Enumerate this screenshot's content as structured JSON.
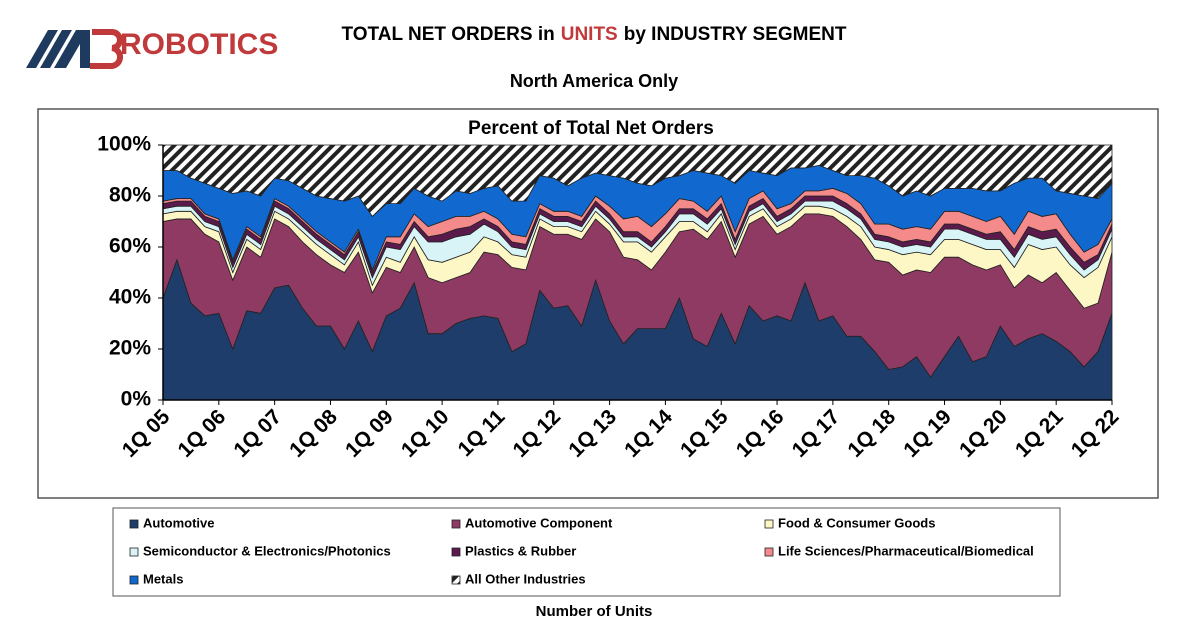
{
  "logo": {
    "text": "ROBOTICS"
  },
  "chart_data": {
    "type": "stacked_area",
    "title": {
      "before": "TOTAL NET ORDERS in",
      "highlight": "UNITS",
      "after": "by INDUSTRY SEGMENT"
    },
    "subtitle": "North America Only",
    "plot_title": "Percent of Total Net Orders",
    "x_label": "Number of Units",
    "categories": [
      "1Q 05",
      null,
      null,
      null,
      "1Q 06",
      null,
      null,
      null,
      "1Q 07",
      null,
      null,
      null,
      "1Q 08",
      null,
      null,
      null,
      "1Q 09",
      null,
      null,
      null,
      "1Q 10",
      null,
      null,
      null,
      "1Q 11",
      null,
      null,
      null,
      "1Q 12",
      null,
      null,
      null,
      "1Q 13",
      null,
      null,
      null,
      "1Q 14",
      null,
      null,
      null,
      "1Q 15",
      null,
      null,
      null,
      "1Q 16",
      null,
      null,
      null,
      "1Q 17",
      null,
      null,
      null,
      "1Q 18",
      null,
      null,
      null,
      "1Q 19",
      null,
      null,
      null,
      "1Q 20",
      null,
      null,
      null,
      "1Q 21",
      null,
      null,
      null,
      "1Q 22"
    ],
    "ylim": [
      0,
      100
    ],
    "yticks": [
      {
        "value": 0,
        "label": "0%"
      },
      {
        "value": 20,
        "label": "20%"
      },
      {
        "value": 40,
        "label": "40%"
      },
      {
        "value": 60,
        "label": "60%"
      },
      {
        "value": 80,
        "label": "80%"
      },
      {
        "value": 100,
        "label": "100%"
      }
    ],
    "grid": false,
    "legend": "bottom",
    "series": [
      {
        "name": "Automotive",
        "color": "#1f3d6b",
        "values": [
          40,
          55,
          38,
          33,
          34,
          20,
          35,
          34,
          44,
          45,
          36,
          29,
          29,
          20,
          31,
          19,
          33,
          36,
          46,
          26,
          26,
          30,
          32,
          33,
          32,
          19,
          22,
          43,
          36,
          37,
          29,
          47,
          31,
          22,
          28,
          28,
          28,
          40,
          24,
          21,
          34,
          22,
          37,
          31,
          33,
          31,
          46,
          31,
          33,
          25,
          25,
          19,
          12,
          13,
          17,
          9,
          17,
          25,
          15,
          17,
          29,
          21,
          24,
          26,
          23,
          19,
          13,
          19,
          34
        ]
      },
      {
        "name": "Automotive Component",
        "color": "#8e3a63",
        "values": [
          30,
          16,
          33,
          32,
          28,
          27,
          25,
          22,
          27,
          23,
          26,
          28,
          24,
          30,
          27,
          23,
          19,
          14,
          14,
          22,
          20,
          18,
          18,
          25,
          25,
          33,
          29,
          25,
          29,
          28,
          34,
          24,
          35,
          34,
          27,
          23,
          30,
          26,
          43,
          42,
          36,
          34,
          32,
          41,
          32,
          37,
          27,
          42,
          39,
          43,
          38,
          36,
          42,
          36,
          34,
          41,
          39,
          31,
          38,
          34,
          24,
          23,
          25,
          20,
          27,
          24,
          23,
          19,
          24
        ]
      },
      {
        "name": "Food & Consumer Goods",
        "color": "#fdf7c6",
        "values": [
          3,
          3,
          3,
          3,
          4,
          3,
          3,
          3,
          3,
          3,
          4,
          4,
          4,
          3,
          4,
          3,
          4,
          4,
          4,
          7,
          8,
          8,
          8,
          6,
          5,
          5,
          5,
          3,
          3,
          3,
          3,
          3,
          3,
          6,
          7,
          7,
          6,
          4,
          3,
          3,
          3,
          3,
          3,
          3,
          3,
          3,
          3,
          3,
          3,
          4,
          5,
          5,
          5,
          8,
          7,
          7,
          7,
          7,
          8,
          8,
          6,
          8,
          12,
          13,
          10,
          10,
          12,
          14,
          6
        ]
      },
      {
        "name": "Semiconductor & Electronics/Photonics",
        "color": "#d8f4f7",
        "values": [
          2,
          2,
          2,
          2,
          2,
          2,
          2,
          2,
          2,
          2,
          2,
          2,
          2,
          2,
          2,
          3,
          4,
          5,
          4,
          7,
          8,
          8,
          7,
          5,
          4,
          3,
          3,
          2,
          2,
          2,
          2,
          2,
          2,
          2,
          2,
          2,
          2,
          3,
          3,
          3,
          2,
          2,
          2,
          2,
          2,
          2,
          2,
          2,
          3,
          3,
          3,
          3,
          3,
          3,
          3,
          3,
          4,
          4,
          4,
          4,
          4,
          4,
          4,
          4,
          4,
          4,
          3,
          3,
          3
        ]
      },
      {
        "name": "Plastics & Rubber",
        "color": "#5b1a4c",
        "values": [
          2,
          2,
          2,
          2,
          2,
          2,
          2,
          2,
          2,
          2,
          2,
          2,
          2,
          2,
          2,
          2,
          2,
          2,
          2,
          2,
          3,
          3,
          3,
          2,
          2,
          2,
          2,
          2,
          2,
          2,
          2,
          2,
          2,
          2,
          2,
          2,
          2,
          2,
          2,
          2,
          2,
          2,
          2,
          2,
          2,
          2,
          2,
          2,
          2,
          2,
          2,
          2,
          2,
          2,
          2,
          2,
          2,
          2,
          2,
          2,
          3,
          3,
          3,
          3,
          3,
          3,
          3,
          2,
          2
        ]
      },
      {
        "name": "Life Sciences/Pharmaceutical/Biomedical",
        "color": "#f48a8a",
        "values": [
          1,
          1,
          1,
          1,
          1,
          1,
          1,
          1,
          1,
          1,
          1,
          1,
          1,
          1,
          1,
          1,
          2,
          3,
          3,
          4,
          5,
          5,
          4,
          3,
          3,
          3,
          3,
          2,
          2,
          2,
          2,
          2,
          3,
          5,
          6,
          6,
          5,
          4,
          3,
          3,
          3,
          3,
          3,
          3,
          3,
          2,
          2,
          2,
          3,
          4,
          4,
          4,
          5,
          5,
          5,
          5,
          5,
          5,
          5,
          5,
          6,
          6,
          6,
          6,
          6,
          5,
          4,
          4,
          2
        ]
      },
      {
        "name": "Metals",
        "color": "#1168cf",
        "values": [
          12,
          11,
          8,
          12,
          12,
          26,
          14,
          16,
          8,
          10,
          12,
          14,
          17,
          20,
          13,
          21,
          13,
          13,
          10,
          12,
          8,
          10,
          9,
          9,
          13,
          13,
          14,
          11,
          13,
          10,
          15,
          9,
          12,
          16,
          13,
          16,
          14,
          9,
          12,
          15,
          8,
          19,
          11,
          7,
          13,
          14,
          9,
          10,
          7,
          7,
          11,
          18,
          15,
          13,
          14,
          13,
          9,
          9,
          11,
          12,
          10,
          20,
          13,
          15,
          9,
          16,
          22,
          18,
          14
        ]
      },
      {
        "name": "All Other Industries",
        "color": "hatch",
        "values": [
          10,
          10,
          13,
          15,
          17,
          19,
          18,
          20,
          13,
          14,
          17,
          20,
          21,
          22,
          20,
          28,
          23,
          23,
          17,
          20,
          22,
          18,
          19,
          17,
          16,
          22,
          22,
          12,
          13,
          16,
          13,
          11,
          12,
          13,
          15,
          16,
          13,
          12,
          10,
          11,
          12,
          15,
          10,
          11,
          12,
          9,
          9,
          8,
          10,
          12,
          12,
          13,
          16,
          20,
          18,
          20,
          17,
          17,
          17,
          18,
          18,
          15,
          13,
          13,
          18,
          19,
          20,
          21,
          15
        ]
      }
    ]
  }
}
